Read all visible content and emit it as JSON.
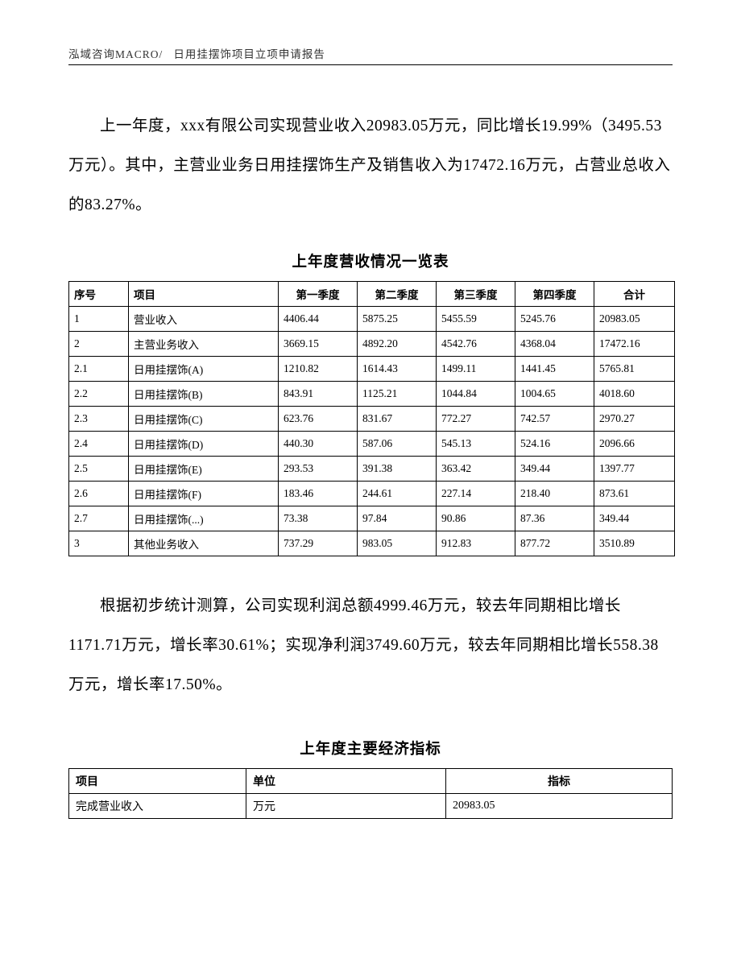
{
  "header": {
    "company": "泓域咨询MACRO/",
    "doc_title": "日用挂摆饰项目立项申请报告"
  },
  "para1": "上一年度，xxx有限公司实现营业收入20983.05万元，同比增长19.99%（3495.53万元）。其中，主营业业务日用挂摆饰生产及销售收入为17472.16万元，占营业总收入的83.27%。",
  "revenue_table": {
    "title": "上年度营收情况一览表",
    "columns": [
      "序号",
      "项目",
      "第一季度",
      "第二季度",
      "第三季度",
      "第四季度",
      "合计"
    ],
    "rows": [
      [
        "1",
        "营业收入",
        "4406.44",
        "5875.25",
        "5455.59",
        "5245.76",
        "20983.05"
      ],
      [
        "2",
        "主营业务收入",
        "3669.15",
        "4892.20",
        "4542.76",
        "4368.04",
        "17472.16"
      ],
      [
        "2.1",
        "日用挂摆饰(A)",
        "1210.82",
        "1614.43",
        "1499.11",
        "1441.45",
        "5765.81"
      ],
      [
        "2.2",
        "日用挂摆饰(B)",
        "843.91",
        "1125.21",
        "1044.84",
        "1004.65",
        "4018.60"
      ],
      [
        "2.3",
        "日用挂摆饰(C)",
        "623.76",
        "831.67",
        "772.27",
        "742.57",
        "2970.27"
      ],
      [
        "2.4",
        "日用挂摆饰(D)",
        "440.30",
        "587.06",
        "545.13",
        "524.16",
        "2096.66"
      ],
      [
        "2.5",
        "日用挂摆饰(E)",
        "293.53",
        "391.38",
        "363.42",
        "349.44",
        "1397.77"
      ],
      [
        "2.6",
        "日用挂摆饰(F)",
        "183.46",
        "244.61",
        "227.14",
        "218.40",
        "873.61"
      ],
      [
        "2.7",
        "日用挂摆饰(...)",
        "73.38",
        "97.84",
        "90.86",
        "87.36",
        "349.44"
      ],
      [
        "3",
        "其他业务收入",
        "737.29",
        "983.05",
        "912.83",
        "877.72",
        "3510.89"
      ]
    ]
  },
  "para2": "根据初步统计测算，公司实现利润总额4999.46万元，较去年同期相比增长1171.71万元，增长率30.61%；实现净利润3749.60万元，较去年同期相比增长558.38万元，增长率17.50%。",
  "indicator_table": {
    "title": "上年度主要经济指标",
    "columns": [
      "项目",
      "单位",
      "指标"
    ],
    "rows": [
      [
        "完成营业收入",
        "万元",
        "20983.05"
      ]
    ]
  }
}
